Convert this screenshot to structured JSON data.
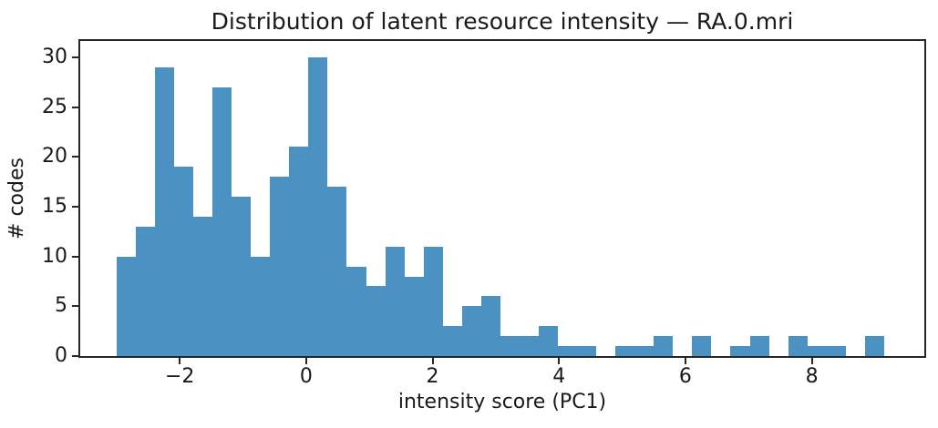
{
  "chart_data": {
    "type": "bar",
    "subtype": "histogram",
    "title": "Distribution of latent resource intensity — RA.0.mri",
    "xlabel": "intensity score (PC1)",
    "ylabel": "# codes",
    "bar_color": "#4B92C3",
    "axis_color": "#262626",
    "bin_start": -3.0,
    "bin_width": 0.3036,
    "values": [
      10,
      13,
      29,
      19,
      14,
      27,
      16,
      10,
      18,
      21,
      30,
      17,
      9,
      7,
      11,
      8,
      11,
      3,
      5,
      6,
      2,
      2,
      3,
      1,
      1,
      0,
      1,
      1,
      2,
      0,
      2,
      0,
      1,
      2,
      0,
      2,
      1,
      1,
      0,
      2
    ],
    "x_ticks": [
      -2,
      0,
      2,
      4,
      6,
      8
    ],
    "x_tick_labels": [
      "−2",
      "0",
      "2",
      "4",
      "6",
      "8"
    ],
    "y_ticks": [
      0,
      5,
      10,
      15,
      20,
      25,
      30
    ],
    "y_tick_labels": [
      "0",
      "5",
      "10",
      "15",
      "20",
      "25",
      "30"
    ],
    "xlim": [
      -3.575,
      9.78
    ],
    "ylim": [
      0,
      31.63
    ],
    "grid": false,
    "legend": null
  }
}
